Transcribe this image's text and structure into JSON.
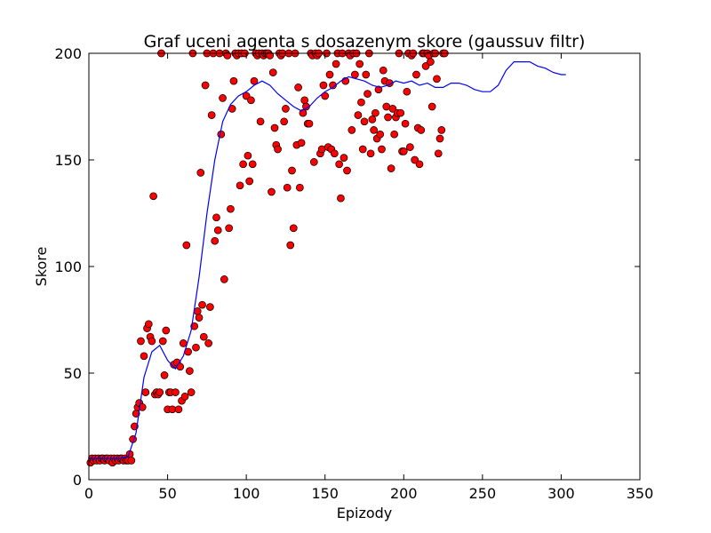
{
  "chart_data": {
    "type": "scatter",
    "title": "Graf uceni agenta s dosazenym skore (gaussuv filtr)",
    "xlabel": "Epizody",
    "ylabel": "Skore",
    "xlim": [
      0,
      350
    ],
    "ylim": [
      0,
      200
    ],
    "xticks": [
      0,
      50,
      100,
      150,
      200,
      250,
      300,
      350
    ],
    "yticks": [
      0,
      50,
      100,
      150,
      200
    ],
    "grid": false,
    "legend": "none",
    "series": [
      {
        "kind": "points",
        "marker_color": "#ff0000",
        "edge_color": "#000000",
        "points": [
          [
            1,
            8
          ],
          [
            2,
            10
          ],
          [
            3,
            9
          ],
          [
            4,
            10
          ],
          [
            5,
            9
          ],
          [
            6,
            10
          ],
          [
            7,
            9
          ],
          [
            8,
            10
          ],
          [
            9,
            10
          ],
          [
            10,
            9
          ],
          [
            11,
            10
          ],
          [
            12,
            10
          ],
          [
            13,
            9
          ],
          [
            14,
            10
          ],
          [
            15,
            8
          ],
          [
            16,
            10
          ],
          [
            17,
            9
          ],
          [
            18,
            10
          ],
          [
            19,
            9
          ],
          [
            20,
            10
          ],
          [
            21,
            10
          ],
          [
            22,
            9
          ],
          [
            23,
            10
          ],
          [
            24,
            9
          ],
          [
            25,
            9
          ],
          [
            26,
            12
          ],
          [
            27,
            9
          ],
          [
            28,
            19
          ],
          [
            29,
            25
          ],
          [
            30,
            31
          ],
          [
            31,
            34
          ],
          [
            32,
            36
          ],
          [
            33,
            65
          ],
          [
            34,
            34
          ],
          [
            35,
            58
          ],
          [
            36,
            41
          ],
          [
            37,
            71
          ],
          [
            38,
            73
          ],
          [
            39,
            67
          ],
          [
            40,
            65
          ],
          [
            41,
            133
          ],
          [
            42,
            40
          ],
          [
            43,
            41
          ],
          [
            44,
            40
          ],
          [
            45,
            41
          ],
          [
            46,
            200
          ],
          [
            47,
            65
          ],
          [
            48,
            49
          ],
          [
            49,
            70
          ],
          [
            50,
            33
          ],
          [
            51,
            41
          ],
          [
            52,
            41
          ],
          [
            53,
            33
          ],
          [
            54,
            54
          ],
          [
            55,
            41
          ],
          [
            56,
            55
          ],
          [
            57,
            33
          ],
          [
            58,
            53
          ],
          [
            59,
            37
          ],
          [
            60,
            64
          ],
          [
            61,
            39
          ],
          [
            62,
            110
          ],
          [
            63,
            60
          ],
          [
            64,
            51
          ],
          [
            65,
            41
          ],
          [
            66,
            200
          ],
          [
            67,
            72
          ],
          [
            68,
            62
          ],
          [
            69,
            79
          ],
          [
            70,
            76
          ],
          [
            71,
            144
          ],
          [
            72,
            82
          ],
          [
            73,
            67
          ],
          [
            74,
            185
          ],
          [
            75,
            200
          ],
          [
            76,
            64
          ],
          [
            77,
            81
          ],
          [
            78,
            171
          ],
          [
            79,
            200
          ],
          [
            80,
            112
          ],
          [
            81,
            123
          ],
          [
            82,
            117
          ],
          [
            83,
            200
          ],
          [
            84,
            162
          ],
          [
            85,
            179
          ],
          [
            86,
            94
          ],
          [
            87,
            200
          ],
          [
            88,
            199
          ],
          [
            89,
            118
          ],
          [
            90,
            127
          ],
          [
            91,
            174
          ],
          [
            92,
            187
          ],
          [
            93,
            200
          ],
          [
            94,
            199
          ],
          [
            95,
            200
          ],
          [
            96,
            138
          ],
          [
            97,
            200
          ],
          [
            98,
            148
          ],
          [
            99,
            200
          ],
          [
            100,
            180
          ],
          [
            101,
            152
          ],
          [
            102,
            140
          ],
          [
            103,
            178
          ],
          [
            104,
            148
          ],
          [
            105,
            187
          ],
          [
            106,
            200
          ],
          [
            107,
            199
          ],
          [
            108,
            200
          ],
          [
            109,
            168
          ],
          [
            110,
            200
          ],
          [
            111,
            199
          ],
          [
            112,
            200
          ],
          [
            113,
            200
          ],
          [
            114,
            200
          ],
          [
            115,
            199
          ],
          [
            116,
            135
          ],
          [
            117,
            191
          ],
          [
            118,
            165
          ],
          [
            119,
            157
          ],
          [
            120,
            155
          ],
          [
            121,
            200
          ],
          [
            122,
            199
          ],
          [
            123,
            200
          ],
          [
            124,
            168
          ],
          [
            125,
            174
          ],
          [
            126,
            137
          ],
          [
            127,
            200
          ],
          [
            128,
            110
          ],
          [
            129,
            145
          ],
          [
            130,
            118
          ],
          [
            131,
            200
          ],
          [
            132,
            157
          ],
          [
            133,
            184
          ],
          [
            134,
            137
          ],
          [
            135,
            158
          ],
          [
            136,
            172
          ],
          [
            137,
            178
          ],
          [
            138,
            175
          ],
          [
            139,
            167
          ],
          [
            140,
            167
          ],
          [
            141,
            200
          ],
          [
            142,
            199
          ],
          [
            143,
            149
          ],
          [
            144,
            200
          ],
          [
            145,
            199
          ],
          [
            146,
            200
          ],
          [
            147,
            153
          ],
          [
            148,
            155
          ],
          [
            149,
            185
          ],
          [
            150,
            180
          ],
          [
            151,
            200
          ],
          [
            152,
            156
          ],
          [
            153,
            190
          ],
          [
            154,
            155
          ],
          [
            155,
            185
          ],
          [
            156,
            153
          ],
          [
            157,
            195
          ],
          [
            158,
            200
          ],
          [
            159,
            148
          ],
          [
            160,
            132
          ],
          [
            161,
            200
          ],
          [
            162,
            151
          ],
          [
            163,
            187
          ],
          [
            164,
            145
          ],
          [
            165,
            200
          ],
          [
            166,
            199
          ],
          [
            167,
            164
          ],
          [
            168,
            200
          ],
          [
            169,
            190
          ],
          [
            170,
            200
          ],
          [
            171,
            171
          ],
          [
            172,
            195
          ],
          [
            173,
            177
          ],
          [
            174,
            155
          ],
          [
            175,
            168
          ],
          [
            176,
            190
          ],
          [
            177,
            181
          ],
          [
            178,
            200
          ],
          [
            179,
            153
          ],
          [
            180,
            169
          ],
          [
            181,
            164
          ],
          [
            182,
            172
          ],
          [
            183,
            160
          ],
          [
            184,
            183
          ],
          [
            185,
            162
          ],
          [
            186,
            155
          ],
          [
            187,
            192
          ],
          [
            188,
            187
          ],
          [
            189,
            175
          ],
          [
            190,
            170
          ],
          [
            191,
            186
          ],
          [
            192,
            146
          ],
          [
            193,
            174
          ],
          [
            194,
            162
          ],
          [
            195,
            170
          ],
          [
            196,
            172
          ],
          [
            197,
            200
          ],
          [
            198,
            172
          ],
          [
            199,
            154
          ],
          [
            200,
            154
          ],
          [
            201,
            167
          ],
          [
            202,
            182
          ],
          [
            203,
            200
          ],
          [
            204,
            156
          ],
          [
            205,
            199
          ],
          [
            206,
            200
          ],
          [
            207,
            150
          ],
          [
            208,
            190
          ],
          [
            209,
            165
          ],
          [
            210,
            148
          ],
          [
            211,
            164
          ],
          [
            212,
            200
          ],
          [
            213,
            200
          ],
          [
            214,
            194
          ],
          [
            215,
            200
          ],
          [
            216,
            199
          ],
          [
            217,
            196
          ],
          [
            218,
            175
          ],
          [
            219,
            200
          ],
          [
            220,
            200
          ],
          [
            221,
            188
          ],
          [
            222,
            153
          ],
          [
            223,
            160
          ],
          [
            224,
            164
          ],
          [
            225,
            200
          ],
          [
            226,
            200
          ]
        ]
      },
      {
        "kind": "line",
        "line_color": "#0000ff",
        "x": [
          0,
          10,
          20,
          25,
          30,
          35,
          40,
          45,
          50,
          55,
          60,
          65,
          70,
          75,
          80,
          85,
          90,
          95,
          100,
          105,
          110,
          115,
          120,
          125,
          130,
          135,
          140,
          145,
          150,
          155,
          160,
          165,
          170,
          175,
          180,
          185,
          190,
          195,
          200,
          205,
          210,
          215,
          220,
          225,
          230,
          235,
          240,
          245,
          250,
          255,
          260,
          265,
          270,
          275,
          280,
          285,
          290,
          295,
          300,
          303
        ],
        "y": [
          10,
          10,
          10,
          11,
          22,
          48,
          60,
          63,
          56,
          52,
          58,
          70,
          95,
          125,
          150,
          168,
          176,
          180,
          182,
          185,
          187,
          185,
          181,
          178,
          175,
          173,
          175,
          179,
          182,
          184,
          187,
          189,
          188,
          187,
          185,
          184,
          185,
          187,
          186,
          187,
          185,
          186,
          184,
          184,
          186,
          186,
          185,
          183,
          182,
          182,
          185,
          192,
          196,
          196,
          196,
          194,
          193,
          191,
          190,
          190
        ]
      }
    ]
  }
}
